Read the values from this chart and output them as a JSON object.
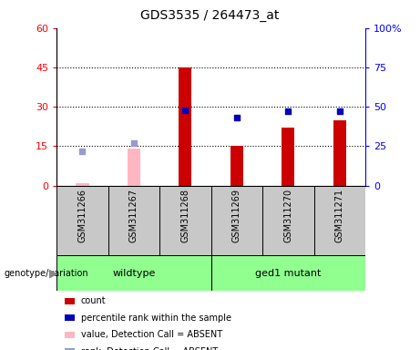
{
  "title": "GDS3535 / 264473_at",
  "samples": [
    "GSM311266",
    "GSM311267",
    "GSM311268",
    "GSM311269",
    "GSM311270",
    "GSM311271"
  ],
  "count_values": [
    null,
    null,
    45,
    15,
    22,
    25
  ],
  "rank_values_right": [
    null,
    null,
    48,
    43,
    47,
    47
  ],
  "count_absent": [
    1,
    14,
    null,
    null,
    null,
    null
  ],
  "rank_absent_right": [
    22,
    27,
    null,
    null,
    null,
    null
  ],
  "ylim_left": [
    0,
    60
  ],
  "ylim_right": [
    0,
    100
  ],
  "yticks_left": [
    0,
    15,
    30,
    45,
    60
  ],
  "ytick_labels_left": [
    "0",
    "15",
    "30",
    "45",
    "60"
  ],
  "yticks_right": [
    0,
    25,
    50,
    75,
    100
  ],
  "ytick_labels_right": [
    "0",
    "25",
    "50",
    "75",
    "100%"
  ],
  "bar_color_present": "#cc0000",
  "bar_color_absent": "#ffb6c1",
  "square_color_present": "#0000bb",
  "square_color_absent": "#9999cc",
  "bar_width": 0.25,
  "square_size": 25,
  "group_color": "#90ff90",
  "sample_bg": "#c8c8c8",
  "legend_items": [
    {
      "color": "#cc0000",
      "label": "count"
    },
    {
      "color": "#0000bb",
      "label": "percentile rank within the sample"
    },
    {
      "color": "#ffb6c1",
      "label": "value, Detection Call = ABSENT"
    },
    {
      "color": "#9999cc",
      "label": "rank, Detection Call = ABSENT"
    }
  ]
}
